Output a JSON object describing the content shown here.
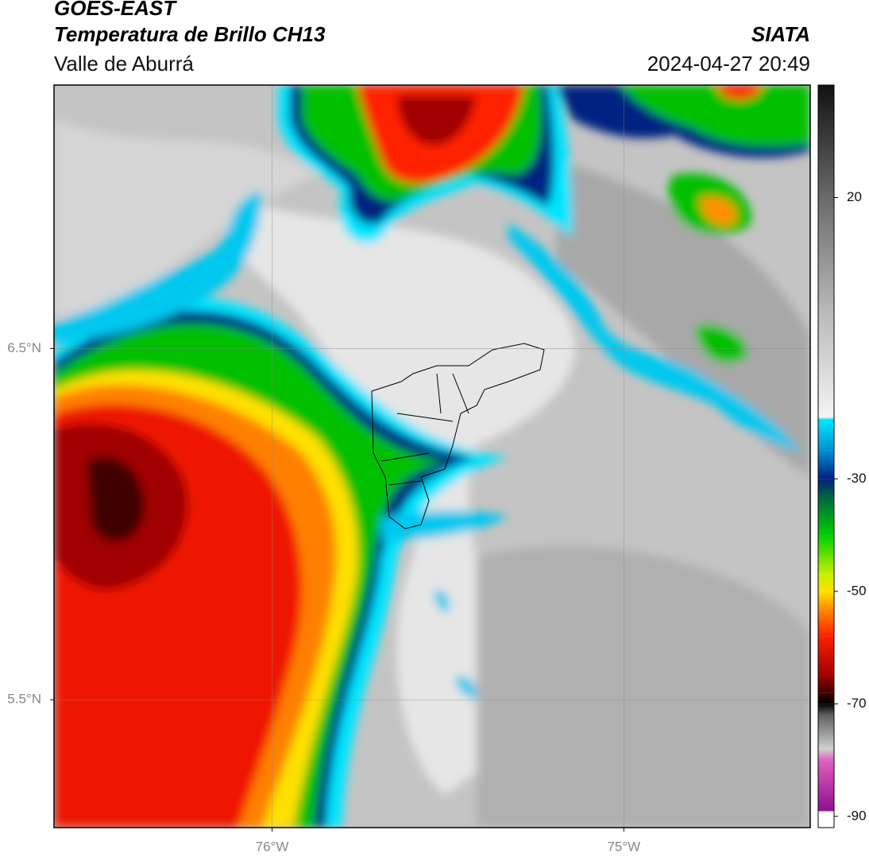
{
  "header": {
    "title": "GOES-EAST",
    "subtitle": "Temperatura de Brillo CH13",
    "region": "Valle de Aburrá",
    "source": "SIATA",
    "timestamp": "2024-04-27 20:49"
  },
  "map": {
    "lonlim": [
      -76.62,
      -74.47
    ],
    "latlim": [
      5.136,
      7.25
    ],
    "lonticks": [
      {
        "value": -76,
        "label": "76°W"
      },
      {
        "value": -75,
        "label": "75°W"
      }
    ],
    "latticks": [
      {
        "value": 6.5,
        "label": "6.5°N"
      },
      {
        "value": 5.5,
        "label": "5.5°N"
      }
    ],
    "grid": true
  },
  "colorbar": {
    "lim": [
      -92,
      40
    ],
    "ticks": [
      20,
      -30,
      -50,
      -70,
      -90
    ],
    "colormap": [
      {
        "value": 40,
        "color": "#111111"
      },
      {
        "value": 20,
        "color": "#6a6a6a"
      },
      {
        "value": 0,
        "color": "#b8b8b8"
      },
      {
        "value": -19,
        "color": "#f4f4f4"
      },
      {
        "value": -19.5,
        "color": "#00e5ff"
      },
      {
        "value": -25,
        "color": "#0090d0"
      },
      {
        "value": -30,
        "color": "#002080"
      },
      {
        "value": -33,
        "color": "#006040"
      },
      {
        "value": -40,
        "color": "#00d000"
      },
      {
        "value": -47,
        "color": "#c8f000"
      },
      {
        "value": -50,
        "color": "#ffe000"
      },
      {
        "value": -53,
        "color": "#ff9000"
      },
      {
        "value": -58,
        "color": "#ff2000"
      },
      {
        "value": -65,
        "color": "#a00000"
      },
      {
        "value": -68,
        "color": "#400000"
      },
      {
        "value": -70,
        "color": "#000000"
      },
      {
        "value": -72,
        "color": "#606060"
      },
      {
        "value": -78,
        "color": "#d0d0d0"
      },
      {
        "value": -80,
        "color": "#e060c0"
      },
      {
        "value": -89,
        "color": "#901090"
      },
      {
        "value": -89.2,
        "color": "#ffffff"
      },
      {
        "value": -92,
        "color": "#ffffff"
      }
    ]
  }
}
